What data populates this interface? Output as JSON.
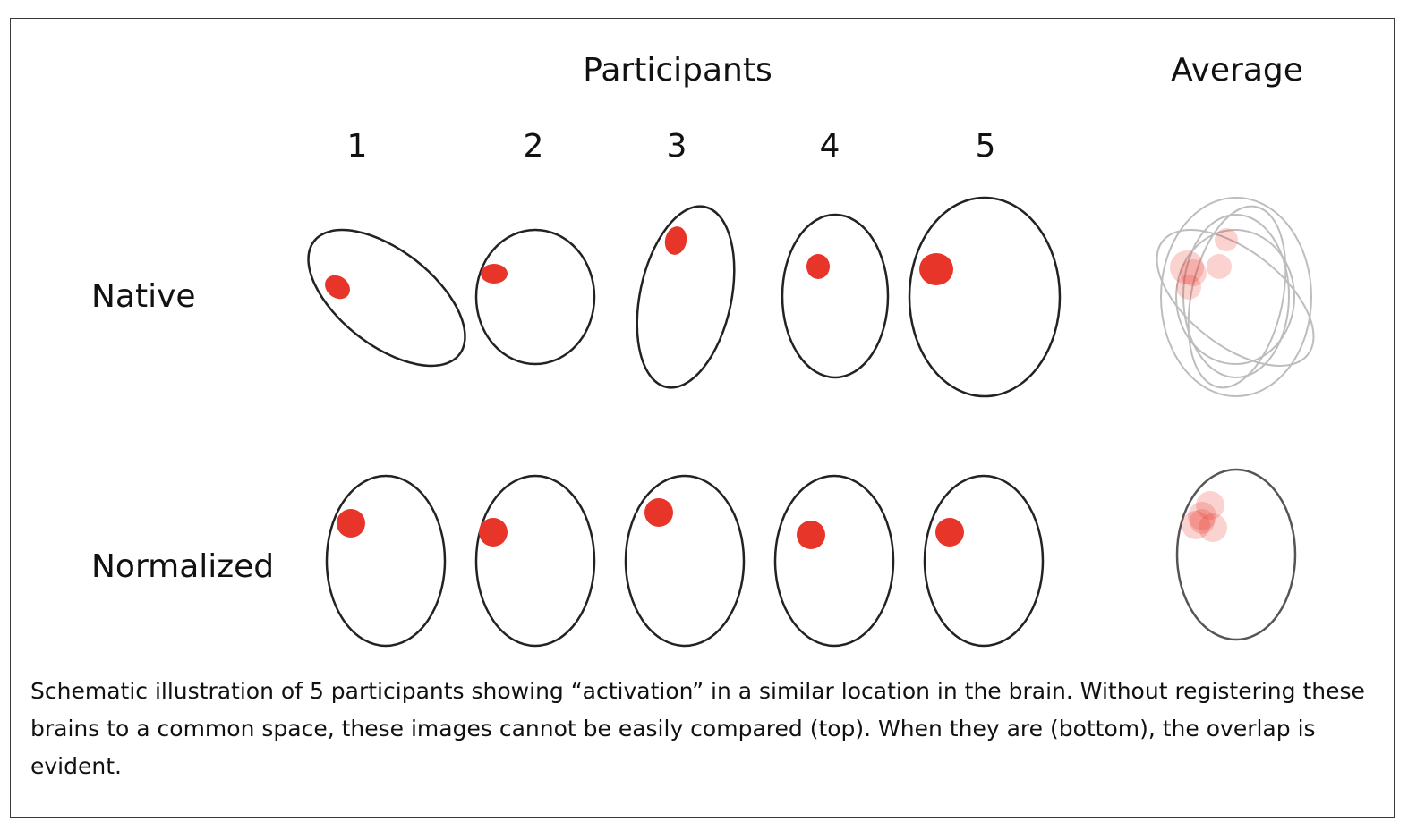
{
  "figure": {
    "header_participants": "Participants",
    "header_average": "Average",
    "participant_numbers": [
      "1",
      "2",
      "3",
      "4",
      "5"
    ],
    "row_labels": [
      "Native",
      "Normalized"
    ],
    "caption": "Schematic illustration of 5 participants showing “activation” in a similar location in the brain. Without registering these brains to a common space, these images cannot be easily compared (top). When they are (bottom), the overlap is evident.",
    "colors": {
      "outline": "#222222",
      "average_outline": "#bdbdbd",
      "activation": "#e8352a",
      "average_activation": "#f08a8a"
    }
  }
}
